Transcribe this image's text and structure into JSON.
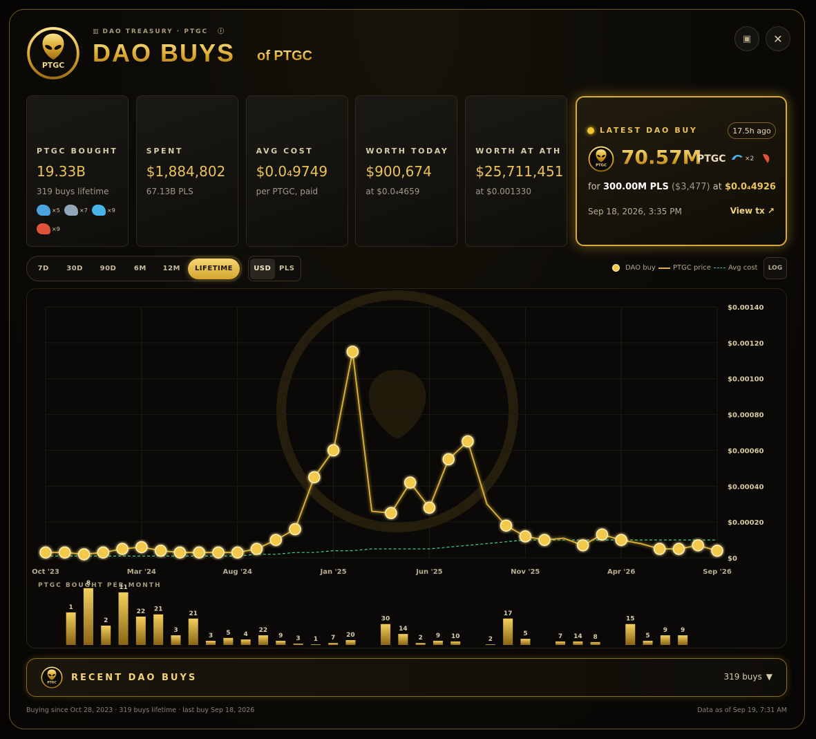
{
  "header": {
    "breadcrumb": "DAO TREASURY · PTGC",
    "title": "DAO BUYS",
    "subtitle": "of PTGC",
    "logo_text": "PTGC"
  },
  "stats": [
    {
      "label": "PTGC BOUGHT",
      "value": "19.33B",
      "sub": "319 buys lifetime",
      "badges": [
        "×5",
        "×7",
        "×9",
        "×9"
      ]
    },
    {
      "label": "SPENT",
      "value": "$1,884,802",
      "sub": "67.13B PLS"
    },
    {
      "label": "AVG COST",
      "value": "$0.0₄9749",
      "sub": "per PTGC, paid"
    },
    {
      "label": "WORTH TODAY",
      "value": "$900,674",
      "sub": "at $0.0₄4659"
    },
    {
      "label": "WORTH AT ATH",
      "value": "$25,711,451",
      "sub": "at $0.001330"
    }
  ],
  "latest": {
    "label": "LATEST DAO BUY",
    "ago": "17.5h ago",
    "amount": "70.57M",
    "token": "PTGC",
    "badges": [
      "×2"
    ],
    "for_label": "for",
    "pls": "300.00M PLS",
    "usd": "($3,477)",
    "at_label": "at",
    "price": "$0.0₄4926",
    "date": "Sep 18, 2026, 3:35 PM",
    "link": "View tx ↗"
  },
  "range": {
    "options": [
      "7D",
      "30D",
      "90D",
      "6M",
      "12M",
      "LIFETIME"
    ],
    "selected": 5
  },
  "currency": {
    "options": [
      "USD",
      "PLS"
    ],
    "selected": 0
  },
  "log_label": "LOG",
  "chart_data": [
    {
      "type": "line",
      "grid": true,
      "categories": [
        "Oct '23",
        null,
        null,
        null,
        null,
        "Mar '24",
        null,
        null,
        null,
        null,
        "Aug '24",
        null,
        null,
        null,
        null,
        "Jan '25",
        null,
        null,
        null,
        null,
        "Jun '25",
        null,
        null,
        null,
        null,
        "Nov '25",
        null,
        null,
        null,
        null,
        "Apr '26",
        null,
        null,
        null,
        null,
        "Sep '26"
      ],
      "ylim": [
        0,
        0.0014
      ],
      "yticks": [
        {
          "value": 0,
          "label": "$0"
        },
        {
          "value": 0.0002,
          "label": "$0.00020"
        },
        {
          "value": 0.0004,
          "label": "$0.00040"
        },
        {
          "value": 0.0006,
          "label": "$0.00060"
        },
        {
          "value": 0.0008,
          "label": "$0.00080"
        },
        {
          "value": 0.001,
          "label": "$0.00100"
        },
        {
          "value": 0.0012,
          "label": "$0.00120"
        },
        {
          "value": 0.0014,
          "label": "$0.00140"
        }
      ],
      "series": [
        {
          "name": "DAO buy",
          "mark": "dot",
          "color": "#f2c94c",
          "values": [
            3e-05,
            3e-05,
            2e-05,
            3e-05,
            5e-05,
            6e-05,
            4e-05,
            3e-05,
            3e-05,
            3e-05,
            3e-05,
            5e-05,
            0.0001,
            0.00016,
            0.00045,
            0.0006,
            0.00115,
            null,
            0.00025,
            0.00042,
            0.00028,
            0.00055,
            0.00065,
            null,
            0.00018,
            0.00012,
            0.0001,
            null,
            7e-05,
            0.00013,
            0.0001,
            null,
            5e-05,
            5e-05,
            7e-05,
            4e-05
          ]
        },
        {
          "name": "PTGC price",
          "mark": "line",
          "color": "#e0b53a",
          "values": [
            3e-05,
            3e-05,
            2e-05,
            3e-05,
            5e-05,
            6e-05,
            4e-05,
            3e-05,
            3e-05,
            3e-05,
            3e-05,
            5e-05,
            0.0001,
            0.00016,
            0.00045,
            0.0006,
            0.00115,
            0.00026,
            0.00025,
            0.00042,
            0.00028,
            0.00055,
            0.00065,
            0.0003,
            0.00018,
            0.00012,
            0.0001,
            0.00011,
            7e-05,
            0.00013,
            0.0001,
            8e-05,
            5e-05,
            5e-05,
            7e-05,
            4e-05
          ]
        },
        {
          "name": "Avg cost",
          "mark": "dashed",
          "color": "#3fcf8e",
          "values": [
            1e-05,
            1e-05,
            1e-05,
            1e-05,
            1e-05,
            1e-05,
            1e-05,
            1e-05,
            1e-05,
            1e-05,
            1e-05,
            2e-05,
            2e-05,
            3e-05,
            3e-05,
            4e-05,
            4e-05,
            5e-05,
            5e-05,
            5e-05,
            5e-05,
            6e-05,
            7e-05,
            8e-05,
            9e-05,
            0.0001,
            0.0001,
            0.0001,
            0.0001,
            0.0001,
            0.0001,
            0.0001,
            0.0001,
            0.0001,
            0.0001,
            0.0001
          ]
        }
      ]
    },
    {
      "type": "bar",
      "title": "PTGC BOUGHT PER MONTH",
      "color": "#d4a82a",
      "ylim": [
        0,
        2.7
      ],
      "values": [
        1.48,
        2.58,
        0.88,
        2.39,
        1.29,
        1.39,
        0.44,
        1.2,
        0.19,
        0.32,
        0.25,
        0.44,
        0.19,
        0.06,
        0.03,
        0.09,
        0.22,
        null,
        0.95,
        0.5,
        0.09,
        0.19,
        0.16,
        null,
        0.03,
        1.2,
        0.28,
        null,
        0.16,
        0.16,
        0.13,
        null,
        0.95,
        0.19,
        0.44,
        0.44
      ],
      "buy_counts": [
        1,
        8,
        2,
        11,
        22,
        21,
        3,
        21,
        3,
        5,
        4,
        22,
        9,
        3,
        1,
        7,
        20,
        null,
        30,
        14,
        2,
        9,
        10,
        null,
        2,
        17,
        5,
        null,
        7,
        14,
        8,
        null,
        15,
        5,
        9,
        9
      ]
    }
  ],
  "recent": {
    "title": "RECENT DAO BUYS",
    "count": "319 buys"
  },
  "footer": {
    "left": "Buying since Oct 28, 2023 · 319 buys lifetime · last buy Sep 18, 2026",
    "right": "Data as of Sep 19, 7:31 AM"
  }
}
